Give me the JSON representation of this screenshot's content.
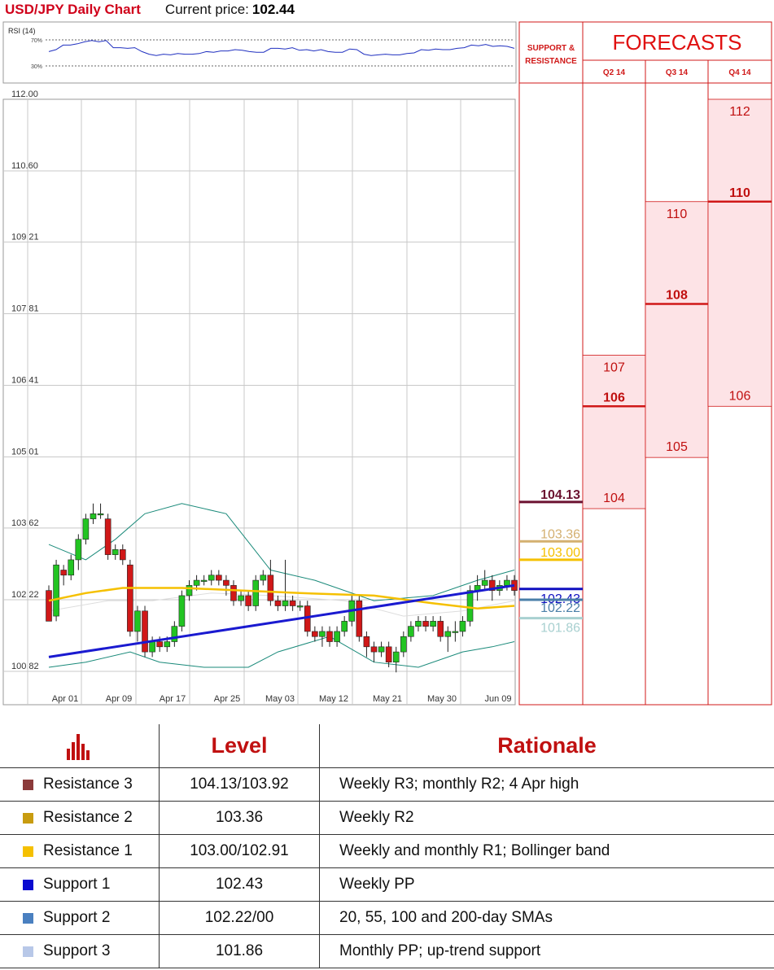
{
  "header": {
    "title": "USD/JPY Daily Chart",
    "price_label": "Current price:",
    "price_value": "102.44"
  },
  "rsi": {
    "label": "RSI (14)",
    "upper": "70%",
    "lower": "30%",
    "values": [
      52,
      55,
      62,
      62,
      64,
      67,
      69,
      67,
      69,
      58,
      58,
      57,
      58,
      52,
      48,
      46,
      48,
      47,
      49,
      48,
      48,
      49,
      52,
      51,
      53,
      53,
      55,
      54,
      52,
      51,
      51,
      57,
      57,
      56,
      58,
      54,
      55,
      53,
      55,
      52,
      51,
      51,
      56,
      55,
      48,
      46,
      47,
      48,
      47,
      47,
      49,
      50,
      55,
      54,
      56,
      55,
      55,
      57,
      58,
      62,
      61,
      63,
      60,
      61,
      60,
      57
    ]
  },
  "chart_data": {
    "type": "candlestick",
    "y_ticks": [
      "112.00",
      "110.60",
      "109.21",
      "107.81",
      "106.41",
      "105.01",
      "103.62",
      "102.22",
      "100.82"
    ],
    "x_ticks": [
      "Apr 01",
      "Apr 09",
      "Apr 17",
      "Apr 25",
      "May 03",
      "May 12",
      "May 21",
      "May 30",
      "Jun 09"
    ],
    "ylim": [
      100.6,
      112.0
    ],
    "candles": [
      [
        102.4,
        101.8,
        102.5,
        102.0
      ],
      [
        101.9,
        102.9,
        103.0,
        101.8
      ],
      [
        102.8,
        102.7,
        102.9,
        102.5
      ],
      [
        102.7,
        103.0,
        103.1,
        102.6
      ],
      [
        103.0,
        103.4,
        103.5,
        102.8
      ],
      [
        103.4,
        103.8,
        103.9,
        103.3
      ],
      [
        103.8,
        103.9,
        104.1,
        103.7
      ],
      [
        103.9,
        103.9,
        104.1,
        103.8
      ],
      [
        103.8,
        103.1,
        103.9,
        103.0
      ],
      [
        103.1,
        103.2,
        103.3,
        103.0
      ],
      [
        103.2,
        103.0,
        103.3,
        102.9
      ],
      [
        102.9,
        101.6,
        103.0,
        101.5
      ],
      [
        101.6,
        102.0,
        102.1,
        101.4
      ],
      [
        102.0,
        101.2,
        102.1,
        101.1
      ],
      [
        101.2,
        101.4,
        101.5,
        101.1
      ],
      [
        101.4,
        101.3,
        101.5,
        101.2
      ],
      [
        101.3,
        101.4,
        101.5,
        101.2
      ],
      [
        101.4,
        101.7,
        101.8,
        101.3
      ],
      [
        101.7,
        102.3,
        102.4,
        101.6
      ],
      [
        102.3,
        102.5,
        102.6,
        102.2
      ],
      [
        102.5,
        102.6,
        102.7,
        102.4
      ],
      [
        102.6,
        102.6,
        102.7,
        102.5
      ],
      [
        102.6,
        102.7,
        102.8,
        102.5
      ],
      [
        102.7,
        102.6,
        102.8,
        102.5
      ],
      [
        102.6,
        102.5,
        102.7,
        102.3
      ],
      [
        102.5,
        102.2,
        102.6,
        102.1
      ],
      [
        102.2,
        102.3,
        102.4,
        102.1
      ],
      [
        102.3,
        102.1,
        102.4,
        102.0
      ],
      [
        102.1,
        102.6,
        102.7,
        102.0
      ],
      [
        102.6,
        102.7,
        102.8,
        102.5
      ],
      [
        102.7,
        102.2,
        103.0,
        102.1
      ],
      [
        102.2,
        102.1,
        102.3,
        102.0
      ],
      [
        102.1,
        102.2,
        103.0,
        102.0
      ],
      [
        102.2,
        102.1,
        102.3,
        102.0
      ],
      [
        102.1,
        102.1,
        102.2,
        102.0
      ],
      [
        102.1,
        101.6,
        102.2,
        101.5
      ],
      [
        101.6,
        101.5,
        101.7,
        101.4
      ],
      [
        101.5,
        101.6,
        101.7,
        101.3
      ],
      [
        101.6,
        101.4,
        101.7,
        101.3
      ],
      [
        101.4,
        101.6,
        101.7,
        101.3
      ],
      [
        101.6,
        101.8,
        101.9,
        101.5
      ],
      [
        101.8,
        102.2,
        102.3,
        101.7
      ],
      [
        102.2,
        101.5,
        102.3,
        101.4
      ],
      [
        101.5,
        101.3,
        101.6,
        101.1
      ],
      [
        101.3,
        101.2,
        101.4,
        101.0
      ],
      [
        101.2,
        101.3,
        101.4,
        101.1
      ],
      [
        101.3,
        101.0,
        101.4,
        100.9
      ],
      [
        101.0,
        101.2,
        101.3,
        100.8
      ],
      [
        101.2,
        101.5,
        101.6,
        101.1
      ],
      [
        101.5,
        101.7,
        101.8,
        101.4
      ],
      [
        101.7,
        101.8,
        101.9,
        101.6
      ],
      [
        101.8,
        101.7,
        101.9,
        101.6
      ],
      [
        101.7,
        101.8,
        101.9,
        101.6
      ],
      [
        101.8,
        101.5,
        101.9,
        101.4
      ],
      [
        101.5,
        101.6,
        101.7,
        101.2
      ],
      [
        101.6,
        101.6,
        101.8,
        101.4
      ],
      [
        101.6,
        101.8,
        101.9,
        101.5
      ],
      [
        101.8,
        102.4,
        102.5,
        101.7
      ],
      [
        102.4,
        102.5,
        102.7,
        102.2
      ],
      [
        102.5,
        102.6,
        102.8,
        102.4
      ],
      [
        102.6,
        102.4,
        102.7,
        102.2
      ],
      [
        102.4,
        102.5,
        102.6,
        102.3
      ],
      [
        102.5,
        102.6,
        102.7,
        102.4
      ],
      [
        102.6,
        102.4,
        102.7,
        102.3
      ]
    ],
    "sma_yellow": [
      [
        0,
        102.2
      ],
      [
        5,
        102.35
      ],
      [
        10,
        102.45
      ],
      [
        18,
        102.45
      ],
      [
        26,
        102.4
      ],
      [
        34,
        102.35
      ],
      [
        44,
        102.3
      ],
      [
        52,
        102.15
      ],
      [
        58,
        102.05
      ],
      [
        63,
        102.1
      ]
    ],
    "trend_blue": [
      [
        0,
        101.1
      ],
      [
        63,
        102.5
      ]
    ],
    "bb_upper": [
      [
        0,
        103.3
      ],
      [
        5,
        103.0
      ],
      [
        9,
        103.4
      ],
      [
        13,
        103.9
      ],
      [
        18,
        104.1
      ],
      [
        24,
        103.9
      ],
      [
        30,
        102.8
      ],
      [
        36,
        102.6
      ],
      [
        44,
        102.2
      ],
      [
        52,
        102.3
      ],
      [
        58,
        102.6
      ],
      [
        63,
        102.8
      ]
    ],
    "bb_lower": [
      [
        0,
        100.9
      ],
      [
        5,
        101.0
      ],
      [
        11,
        101.2
      ],
      [
        15,
        101.0
      ],
      [
        21,
        100.9
      ],
      [
        27,
        100.9
      ],
      [
        31,
        101.2
      ],
      [
        38,
        101.5
      ],
      [
        44,
        101.0
      ],
      [
        50,
        100.9
      ],
      [
        56,
        101.2
      ],
      [
        60,
        101.3
      ],
      [
        63,
        101.4
      ]
    ],
    "bb_mid": [
      [
        0,
        102.0
      ],
      [
        8,
        102.2
      ],
      [
        14,
        102.2
      ],
      [
        22,
        102.35
      ],
      [
        30,
        102.3
      ],
      [
        40,
        102.2
      ],
      [
        48,
        101.9
      ],
      [
        56,
        102.0
      ],
      [
        63,
        102.2
      ]
    ]
  },
  "levels": {
    "header": "SUPPORT & RESISTANCE",
    "items": [
      {
        "label": "104.13",
        "value": 104.13,
        "color": "#6b1230"
      },
      {
        "label": "103.36",
        "value": 103.36,
        "color": "#d4b070"
      },
      {
        "label": "103.00",
        "value": 103.0,
        "color": "#f5c000"
      },
      {
        "label": "102.43",
        "value": 102.43,
        "color": "#1010c0"
      },
      {
        "label": "102.22",
        "value": 102.22,
        "color": "#4a7fa8"
      },
      {
        "label": "101.86",
        "value": 101.86,
        "color": "#a8d0d0"
      }
    ]
  },
  "forecasts": {
    "title": "FORECASTS",
    "quarters": [
      {
        "name": "Q2 14",
        "high": 107,
        "mid": 106,
        "low": 104,
        "labels": [
          "107",
          "106",
          "104"
        ]
      },
      {
        "name": "Q3 14",
        "high": 110,
        "mid": 108,
        "low": 105,
        "labels": [
          "110",
          "108",
          "105"
        ]
      },
      {
        "name": "Q4 14",
        "high": 112,
        "mid": 110,
        "low": 106,
        "labels": [
          "112",
          "110",
          "106"
        ]
      }
    ]
  },
  "table": {
    "headers": [
      "Level",
      "Rationale"
    ],
    "rows": [
      {
        "name": "Resistance 3",
        "level": "104.13/103.92",
        "rationale": "Weekly R3; monthly R2; 4 Apr high",
        "color": "#8b3a3a"
      },
      {
        "name": "Resistance 2",
        "level": "103.36",
        "rationale": "Weekly R2",
        "color": "#c89c10"
      },
      {
        "name": "Resistance 1",
        "level": "103.00/102.91",
        "rationale": "Weekly and monthly R1; Bollinger band",
        "color": "#f5c000"
      },
      {
        "name": "Support 1",
        "level": "102.43",
        "rationale": "Weekly PP",
        "color": "#0a0ad0"
      },
      {
        "name": "Support 2",
        "level": "102.22/00",
        "rationale": "20, 55, 100 and 200-day SMAs",
        "color": "#4a80c0"
      },
      {
        "name": "Support 3",
        "level": "101.86",
        "rationale": "Monthly PP; up-trend support",
        "color": "#b8c8e8"
      }
    ]
  }
}
